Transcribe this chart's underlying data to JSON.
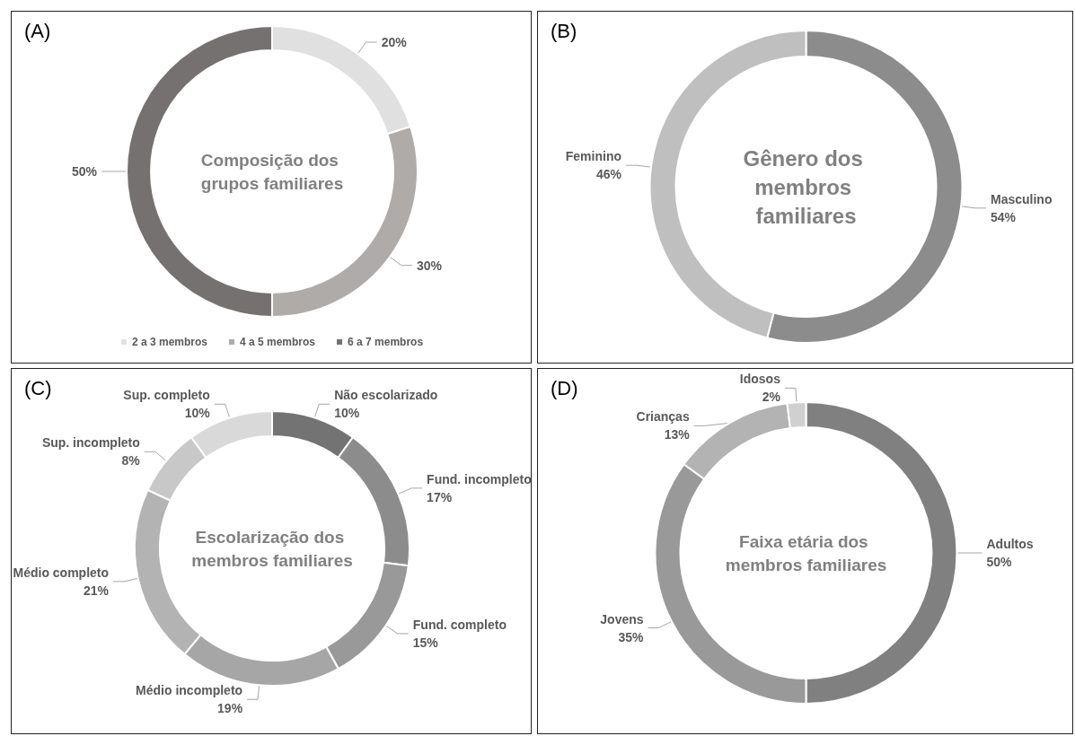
{
  "chart_data": [
    {
      "type": "donut",
      "title": "Composição dos grupos familiares",
      "annotations": [
        "(A)"
      ],
      "categories": [
        "2 a 3 membros",
        "4 a 5 membros",
        "6 a 7 membros"
      ],
      "values": [
        20,
        30,
        50
      ],
      "colors": [
        "#e0e0e0",
        "#afaba9",
        "#767171"
      ],
      "value_labels": [
        "20%",
        "30%",
        "50%"
      ],
      "legend": "bottom"
    },
    {
      "type": "donut",
      "title": "Gênero dos membros familiares",
      "annotations": [
        "(B)"
      ],
      "categories": [
        "Masculino",
        "Feminino"
      ],
      "values": [
        54,
        46
      ],
      "colors": [
        "#8c8c8c",
        "#bfbfbf"
      ],
      "value_labels": [
        "54%",
        "46%"
      ]
    },
    {
      "type": "donut",
      "title": "Escolarização dos membros familiares",
      "annotations": [
        "(C)"
      ],
      "categories": [
        "Não escolarizado",
        "Fund. incompleto",
        "Fund. completo",
        "Médio incompleto",
        "Médio completo",
        "Sup. incompleto",
        "Sup. completo"
      ],
      "values": [
        10,
        17,
        15,
        19,
        21,
        8,
        10
      ],
      "colors": [
        "#737373",
        "#8c8c8c",
        "#999999",
        "#a6a6a6",
        "#b3b3b3",
        "#c8c8c8",
        "#d9d9d9"
      ],
      "value_labels": [
        "10%",
        "17%",
        "15%",
        "19%",
        "21%",
        "8%",
        "10%"
      ]
    },
    {
      "type": "donut",
      "title": "Faixa etária dos membros familiares",
      "annotations": [
        "(D)"
      ],
      "categories": [
        "Adultos",
        "Jovens",
        "Crianças",
        "Idosos"
      ],
      "values": [
        50,
        35,
        13,
        2
      ],
      "colors": [
        "#808080",
        "#999999",
        "#b3b3b3",
        "#d0d0d0"
      ],
      "value_labels": [
        "50%",
        "35%",
        "13%",
        "2%"
      ]
    }
  ]
}
